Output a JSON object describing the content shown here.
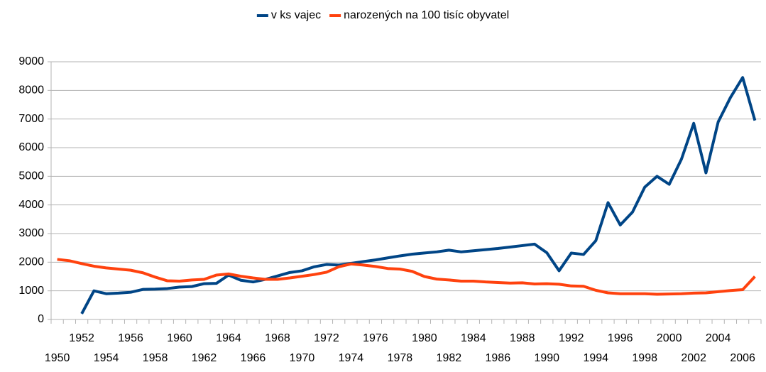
{
  "chart_data": {
    "type": "line",
    "categories": [
      1950,
      null,
      1952,
      null,
      1954,
      null,
      1956,
      null,
      1958,
      null,
      1960,
      null,
      1962,
      null,
      1964,
      null,
      1966,
      null,
      1968,
      null,
      1970,
      null,
      1972,
      null,
      1974,
      null,
      1976,
      null,
      1978,
      null,
      1980,
      null,
      1982,
      null,
      1984,
      null,
      1986,
      null,
      1988,
      null,
      1990,
      null,
      1992,
      null,
      1994,
      null,
      1996,
      null,
      1998,
      null,
      2000,
      null,
      2002,
      null,
      2004,
      null,
      2006,
      null
    ],
    "series": [
      {
        "name": "v ks vajec",
        "color": "#004586",
        "values": [
          null,
          null,
          200,
          1000,
          900,
          920,
          950,
          1050,
          1060,
          1080,
          1130,
          1150,
          1250,
          1260,
          1550,
          1370,
          1310,
          1400,
          1520,
          1640,
          1700,
          1840,
          1920,
          1900,
          1960,
          2020,
          2080,
          2150,
          2220,
          2280,
          2320,
          2360,
          2420,
          2360,
          2400,
          2440,
          2480,
          2530,
          2580,
          2630,
          2330,
          1700,
          2320,
          2270,
          2750,
          4080,
          3300,
          3750,
          4620,
          5000,
          4720,
          5600,
          6850,
          5120,
          6900,
          7750,
          8450,
          6950
        ]
      },
      {
        "name": "narozených na 100 tisíc obyvatel",
        "color": "#ff420e",
        "values": [
          2100,
          2050,
          1950,
          1860,
          1800,
          1760,
          1720,
          1630,
          1480,
          1350,
          1340,
          1380,
          1400,
          1550,
          1590,
          1510,
          1450,
          1400,
          1400,
          1450,
          1510,
          1570,
          1650,
          1840,
          1940,
          1900,
          1850,
          1780,
          1760,
          1680,
          1500,
          1410,
          1380,
          1340,
          1340,
          1310,
          1290,
          1270,
          1280,
          1240,
          1250,
          1230,
          1170,
          1160,
          1020,
          930,
          900,
          900,
          900,
          880,
          890,
          900,
          920,
          930,
          970,
          1010,
          1040,
          1500
        ]
      }
    ],
    "ylim": [
      0,
      9000
    ],
    "yticks": [
      0,
      1000,
      2000,
      3000,
      4000,
      5000,
      6000,
      7000,
      8000,
      9000
    ],
    "grid": true,
    "legend": "top"
  }
}
